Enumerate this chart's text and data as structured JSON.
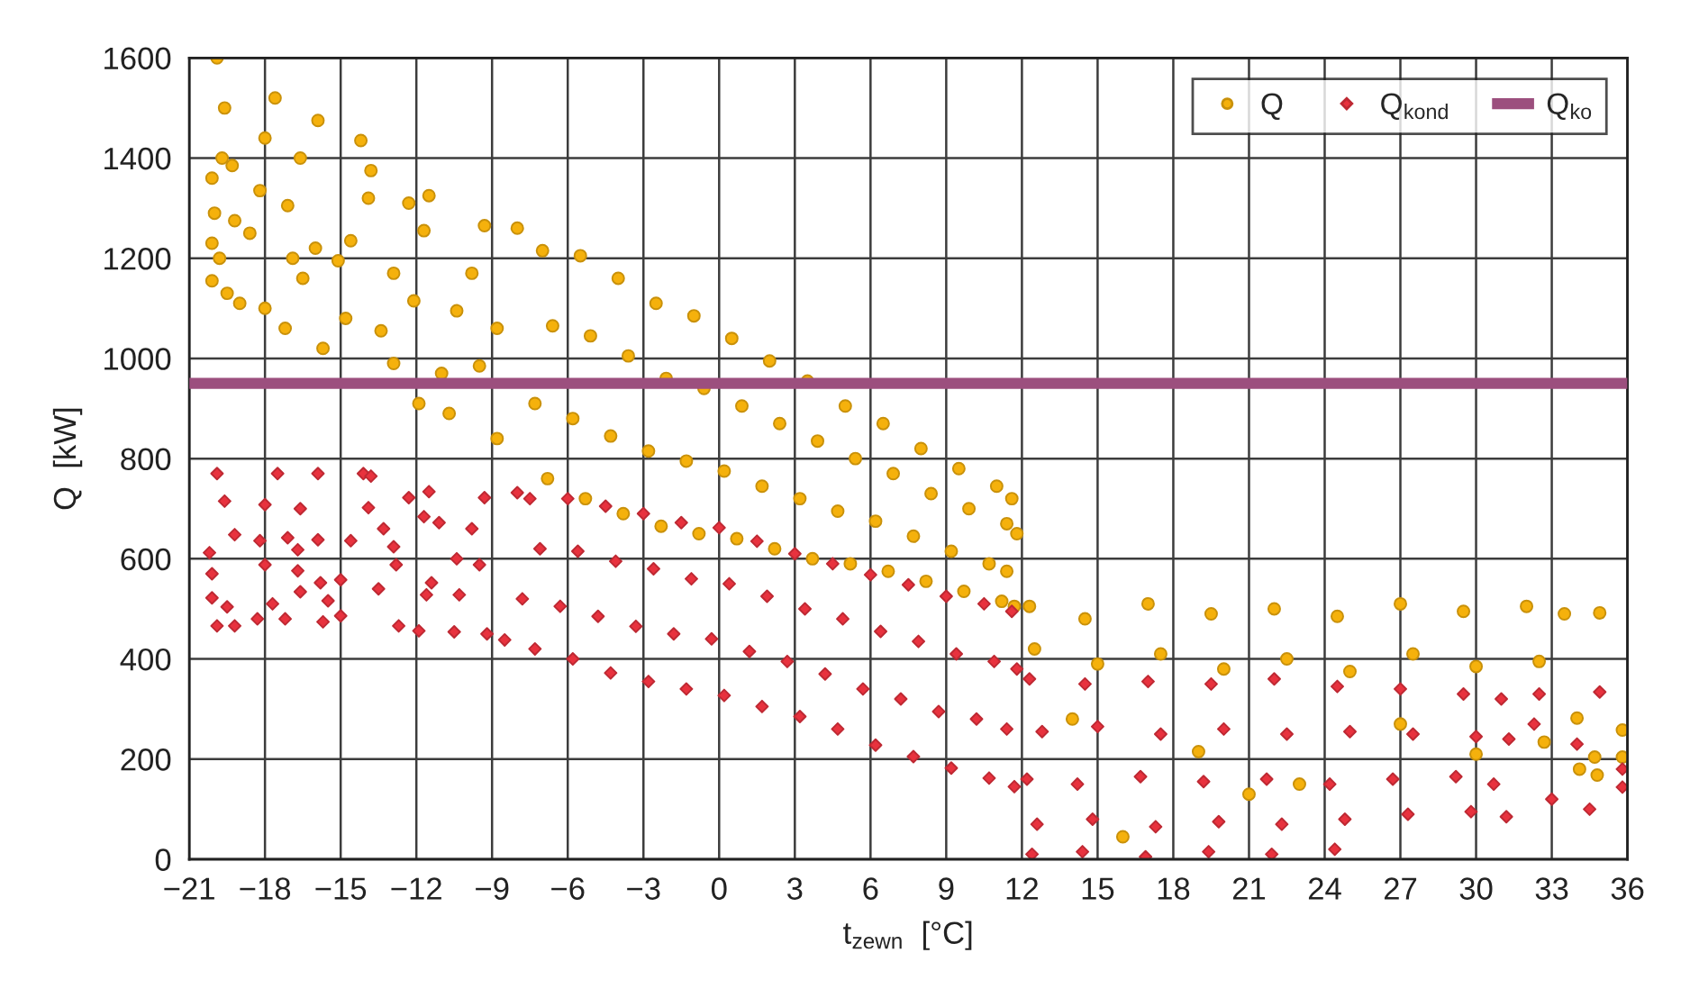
{
  "chart_data": {
    "type": "scatter",
    "xlabel": "t$_{zewn}$  [°C]",
    "ylabel": "Q  [kW]",
    "xlim": [
      -21,
      36
    ],
    "ylim": [
      0,
      1600
    ],
    "xticks": [
      {
        "value": -21,
        "label": "−21"
      },
      {
        "value": -18,
        "label": "−18"
      },
      {
        "value": -15,
        "label": "−15"
      },
      {
        "value": -12,
        "label": "−12"
      },
      {
        "value": -9,
        "label": "−9"
      },
      {
        "value": -6,
        "label": "−6"
      },
      {
        "value": -3,
        "label": "−3"
      },
      0,
      3,
      6,
      9,
      12,
      15,
      18,
      21,
      24,
      27,
      30,
      33,
      36
    ],
    "yticks": [
      0,
      200,
      400,
      600,
      800,
      1000,
      1200,
      1400,
      1600
    ],
    "grid": true,
    "legend": "top right",
    "series": [
      {
        "name": "Q",
        "marker": "circle",
        "color": "#f5b10c",
        "x": [
          -19.9,
          -19.6,
          -20.1,
          -19.7,
          -19.3,
          -20.0,
          -19.2,
          -20.1,
          -19.8,
          -20.1,
          -19.5,
          -19.0,
          -18.6,
          -18.2,
          -18.0,
          -18.0,
          -17.6,
          -17.1,
          -16.9,
          -17.2,
          -16.5,
          -16.6,
          -15.9,
          -16.0,
          -15.7,
          -15.1,
          -14.8,
          -14.6,
          -14.2,
          -13.8,
          -13.9,
          -13.4,
          -12.9,
          -12.9,
          -12.3,
          -11.5,
          -12.1,
          -11.0,
          -11.7,
          -10.4,
          -9.8,
          -9.3,
          -10.7,
          -9.5,
          -8.8,
          -8.0,
          -8.8,
          -11.9,
          -7,
          -6.6,
          -7.3,
          -6.8,
          -5.5,
          -5.1,
          -5.8,
          -5.3,
          -4,
          -3.6,
          -4.3,
          -3.8,
          -2.5,
          -2.1,
          -2.8,
          -2.3,
          -1,
          -0.6,
          -1.3,
          -0.8,
          0.5,
          0.9,
          0.2,
          0.7,
          2,
          2.4,
          1.7,
          2.2,
          3.5,
          3.9,
          3.2,
          3.7,
          5,
          5.4,
          4.7,
          5.2,
          6.5,
          6.9,
          6.2,
          6.7,
          8,
          8.4,
          7.7,
          8.2,
          9.5,
          9.9,
          9.2,
          9.7,
          11,
          11.4,
          10.7,
          11.2,
          11.6,
          11.8,
          11.4,
          11.7,
          12.3,
          14.5,
          17,
          19.5,
          22,
          24.5,
          27,
          29.5,
          32,
          33.5,
          34.9,
          12.5,
          15,
          17.5,
          20,
          22.5,
          25,
          27.5,
          30,
          32.5,
          14,
          19,
          23,
          27,
          30,
          16,
          21,
          35.8,
          35.8,
          34.7,
          34.8,
          34,
          32.7,
          34.1
        ],
        "values": [
          1600,
          1500,
          1360,
          1400,
          1385,
          1290,
          1275,
          1230,
          1200,
          1155,
          1130,
          1110,
          1250,
          1335,
          1440,
          1100,
          1520,
          1305,
          1200,
          1060,
          1160,
          1400,
          1475,
          1220,
          1020,
          1195,
          1080,
          1235,
          1435,
          1375,
          1320,
          1055,
          1170,
          990,
          1310,
          1325,
          1115,
          970,
          1255,
          1095,
          1170,
          1265,
          890,
          985,
          1060,
          1260,
          840,
          910,
          1215,
          1065,
          910,
          760,
          1205,
          1045,
          880,
          720,
          1160,
          1005,
          845,
          690,
          1110,
          960,
          815,
          665,
          1085,
          940,
          795,
          650,
          1040,
          905,
          775,
          640,
          995,
          870,
          745,
          620,
          955,
          835,
          720,
          600,
          905,
          800,
          695,
          590,
          870,
          770,
          675,
          575,
          820,
          730,
          645,
          555,
          780,
          700,
          615,
          535,
          745,
          670,
          590,
          515,
          720,
          650,
          575,
          505,
          505,
          480,
          510,
          490,
          500,
          485,
          510,
          495,
          505,
          490,
          492,
          420,
          390,
          410,
          380,
          400,
          375,
          410,
          385,
          395,
          280,
          215,
          150,
          270,
          210,
          45,
          130,
          258,
          204,
          204,
          168,
          282,
          234,
          180
        ]
      },
      {
        "name": "Q$_{kond}$",
        "marker": "diamond",
        "color": "#e8323e",
        "x": [
          -19.9,
          -17.5,
          -15.9,
          -14.1,
          -13.8,
          -19.6,
          -18.0,
          -16.6,
          -13.9,
          -12.3,
          -11.5,
          -9.3,
          -8.0,
          -20.2,
          -19.2,
          -18.2,
          -17.1,
          -16.7,
          -15.9,
          -14.6,
          -13.3,
          -12.9,
          -11.7,
          -11.1,
          -9.8,
          -20.1,
          -18.0,
          -16.7,
          -15.8,
          -15.0,
          -12.8,
          -11.4,
          -10.4,
          -9.5,
          -20.1,
          -19.5,
          -17.7,
          -16.6,
          -15.5,
          -13.5,
          -11.6,
          -10.3,
          -19.9,
          -19.2,
          -18.3,
          -17.2,
          -15.7,
          -15.0,
          -12.7,
          -11.9,
          -10.5,
          -9.2,
          -8.5,
          -7.5,
          -7.1,
          -7.8,
          -7.3,
          -6,
          -5.6,
          -6.3,
          -5.8,
          -4.5,
          -4.1,
          -4.8,
          -4.3,
          -3,
          -2.6,
          -3.3,
          -2.8,
          -1.5,
          -1.1,
          -1.8,
          -1.3,
          0,
          0.4,
          -0.3,
          0.2,
          1.5,
          1.9,
          1.2,
          1.7,
          3,
          3.4,
          2.7,
          3.2,
          4.5,
          4.9,
          4.2,
          4.7,
          6,
          6.4,
          5.7,
          6.2,
          7.5,
          7.9,
          7.2,
          7.7,
          9,
          9.4,
          8.7,
          9.2,
          10.5,
          10.9,
          10.2,
          10.7,
          11.6,
          11.8,
          11.4,
          11.7,
          12.3,
          12.8,
          12.2,
          12.6,
          12.4,
          14.5,
          15.0,
          14.2,
          14.8,
          14.4,
          17,
          17.5,
          16.7,
          17.3,
          16.9,
          19.5,
          20,
          19.2,
          19.8,
          19.4,
          22,
          22.5,
          21.7,
          22.3,
          21.9,
          24.5,
          25,
          24.2,
          24.8,
          24.4,
          27,
          27.5,
          26.7,
          27.3,
          29.5,
          30,
          29.2,
          29.8,
          31,
          31.3,
          30.7,
          31.2,
          32.5,
          34.9,
          35.8,
          35.8,
          34.5,
          33,
          32.3,
          34
        ],
        "values": [
          770,
          770,
          770,
          770,
          765,
          715,
          708,
          700,
          702,
          722,
          734,
          722,
          732,
          612,
          648,
          636,
          642,
          618,
          638,
          636,
          660,
          624,
          684,
          672,
          660,
          570,
          588,
          576,
          552,
          558,
          588,
          552,
          600,
          588,
          522,
          504,
          510,
          534,
          516,
          540,
          528,
          528,
          466,
          466,
          480,
          480,
          474,
          486,
          466,
          456,
          454,
          450,
          438,
          720,
          620,
          520,
          420,
          720,
          615,
          505,
          400,
          705,
          595,
          485,
          372,
          690,
          580,
          465,
          355,
          672,
          560,
          450,
          340,
          662,
          550,
          440,
          327,
          635,
          525,
          415,
          305,
          610,
          500,
          395,
          285,
          590,
          480,
          370,
          260,
          568,
          455,
          340,
          228,
          548,
          435,
          320,
          205,
          525,
          410,
          295,
          182,
          510,
          395,
          280,
          162,
          495,
          380,
          260,
          145,
          360,
          255,
          160,
          70,
          10,
          350,
          265,
          150,
          80,
          15,
          355,
          250,
          165,
          65,
          5,
          350,
          260,
          155,
          75,
          15,
          360,
          250,
          160,
          70,
          10,
          345,
          255,
          150,
          80,
          20,
          340,
          250,
          160,
          90,
          330,
          245,
          165,
          95,
          320,
          240,
          150,
          85,
          330,
          334,
          180,
          144,
          100,
          120,
          270,
          230
        ]
      }
    ],
    "ref_lines": [
      {
        "axis": "y",
        "value": 950,
        "label": "Q$_{ko}$",
        "color": "#9c4f7e"
      }
    ]
  }
}
